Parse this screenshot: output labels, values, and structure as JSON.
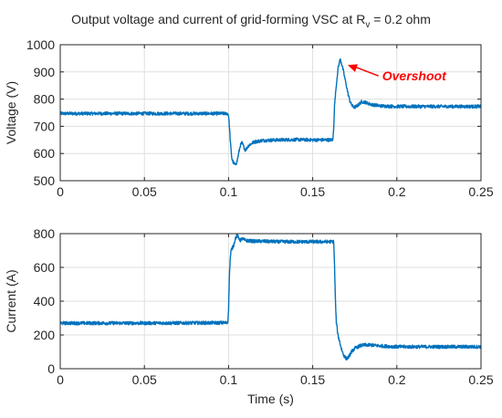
{
  "title_main": "Output voltage and current of grid-forming VSC at R",
  "title_sub": "v",
  "title_tail": " = 0.2 ohm",
  "colors": {
    "series": "#0072BD",
    "annotation": "#FF0000",
    "grid": "#DFDFDF",
    "axis": "#262626"
  },
  "chart_data": [
    {
      "type": "line",
      "ylabel": "Voltage (V)",
      "xlabel": "",
      "xlim": [
        0,
        0.25
      ],
      "ylim": [
        500,
        1000
      ],
      "xticks": [
        0,
        0.05,
        0.1,
        0.15,
        0.2,
        0.25
      ],
      "xtick_labels": [
        "0",
        "0.05",
        "0.1",
        "0.15",
        "0.2",
        "0.25"
      ],
      "yticks": [
        500,
        600,
        700,
        800,
        900,
        1000
      ],
      "ytick_labels": [
        "500",
        "600",
        "700",
        "800",
        "900",
        "1000"
      ],
      "grid": true,
      "annotation": {
        "text": "Overshoot",
        "x": 0.1665,
        "y": 942,
        "text_x": 0.194,
        "text_y": 892
      },
      "series": [
        {
          "x": [
            0,
            0.05,
            0.0995,
            0.1,
            0.1005,
            0.101,
            0.1015,
            0.102,
            0.103,
            0.104,
            0.105,
            0.106,
            0.107,
            0.108,
            0.109,
            0.11,
            0.112,
            0.115,
            0.12,
            0.13,
            0.14,
            0.15,
            0.1595,
            0.16,
            0.161,
            0.162,
            0.1625,
            0.163,
            0.164,
            0.165,
            0.166,
            0.1665,
            0.167,
            0.168,
            0.169,
            0.17,
            0.171,
            0.172,
            0.173,
            0.174,
            0.175,
            0.177,
            0.179,
            0.181,
            0.183,
            0.185,
            0.19,
            0.2,
            0.25
          ],
          "y": [
            747,
            747,
            747,
            740,
            700,
            650,
            610,
            580,
            565,
            558,
            570,
            600,
            630,
            640,
            625,
            612,
            630,
            642,
            648,
            650,
            651,
            650,
            650,
            650,
            650,
            650,
            700,
            780,
            850,
            910,
            940,
            945,
            935,
            910,
            880,
            850,
            820,
            795,
            780,
            772,
            770,
            778,
            790,
            789,
            784,
            780,
            775,
            773,
            773
          ],
          "noise": 6
        }
      ]
    },
    {
      "type": "line",
      "ylabel": "Current (A)",
      "xlabel": "Time (s)",
      "xlim": [
        0,
        0.25
      ],
      "ylim": [
        0,
        800
      ],
      "xticks": [
        0,
        0.05,
        0.1,
        0.15,
        0.2,
        0.25
      ],
      "xtick_labels": [
        "0",
        "0.05",
        "0.1",
        "0.15",
        "0.2",
        "0.25"
      ],
      "yticks": [
        0,
        200,
        400,
        600,
        800
      ],
      "ytick_labels": [
        "0",
        "200",
        "400",
        "600",
        "800"
      ],
      "grid": true,
      "series": [
        {
          "x": [
            0,
            0.05,
            0.0995,
            0.1,
            0.1005,
            0.101,
            0.1015,
            0.102,
            0.103,
            0.104,
            0.105,
            0.106,
            0.107,
            0.108,
            0.11,
            0.115,
            0.12,
            0.13,
            0.14,
            0.15,
            0.16,
            0.1625,
            0.163,
            0.1635,
            0.164,
            0.165,
            0.166,
            0.167,
            0.168,
            0.169,
            0.17,
            0.171,
            0.172,
            0.173,
            0.175,
            0.178,
            0.18,
            0.185,
            0.19,
            0.2,
            0.25
          ],
          "y": [
            270,
            270,
            272,
            350,
            550,
            650,
            700,
            710,
            730,
            770,
            790,
            775,
            760,
            770,
            760,
            755,
            755,
            752,
            752,
            752,
            752,
            752,
            600,
            400,
            280,
            200,
            160,
            120,
            90,
            70,
            60,
            65,
            80,
            100,
            120,
            135,
            140,
            140,
            135,
            130,
            130
          ],
          "noise": 10
        }
      ]
    }
  ]
}
